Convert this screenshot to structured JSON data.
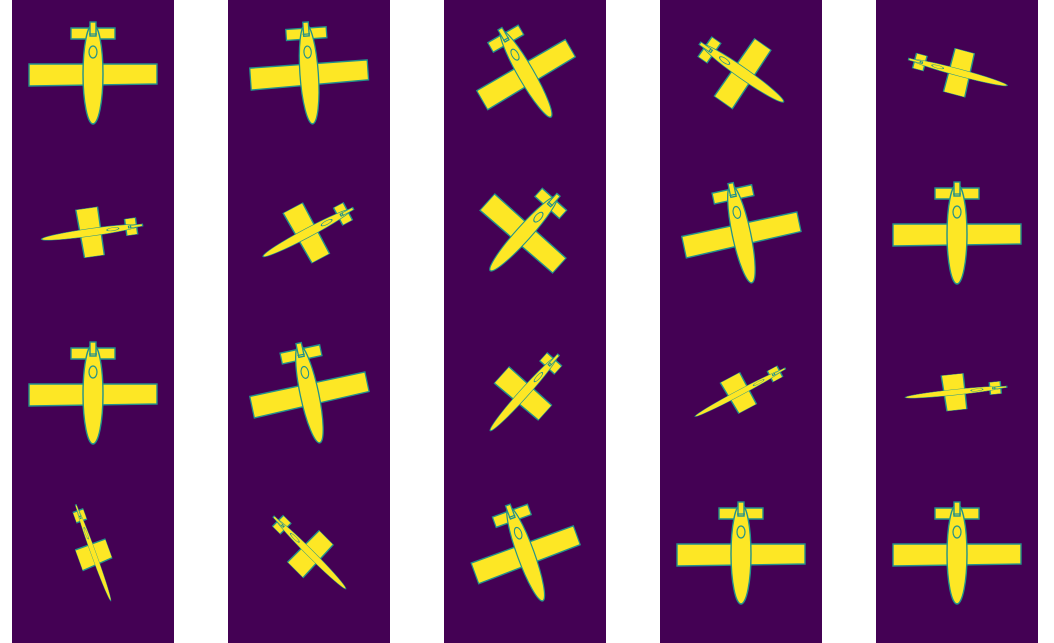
{
  "colors": {
    "background": "#440154",
    "plane": "#fde725",
    "outline": "#21918c",
    "page": "#ffffff"
  },
  "panels": [
    {
      "frames": [
        {
          "rotation": 0,
          "tilt": 1.0
        },
        {
          "rotation": 82,
          "tilt": 0.38
        },
        {
          "rotation": 0,
          "tilt": 1.0
        },
        {
          "rotation": -20,
          "tilt": 0.25
        }
      ]
    },
    {
      "frames": [
        {
          "rotation": -4,
          "tilt": 0.92
        },
        {
          "rotation": 62,
          "tilt": 0.45
        },
        {
          "rotation": -12,
          "tilt": 0.92
        },
        {
          "rotation": -45,
          "tilt": 0.35
        }
      ]
    },
    {
      "frames": [
        {
          "rotation": -30,
          "tilt": 0.8
        },
        {
          "rotation": 42,
          "tilt": 0.75
        },
        {
          "rotation": 42,
          "tilt": 0.45
        },
        {
          "rotation": -20,
          "tilt": 0.85
        }
      ]
    },
    {
      "frames": [
        {
          "rotation": -55,
          "tilt": 0.55
        },
        {
          "rotation": -12,
          "tilt": 0.92
        },
        {
          "rotation": 62,
          "tilt": 0.28
        },
        {
          "rotation": 0,
          "tilt": 1.0
        }
      ]
    },
    {
      "frames": [
        {
          "rotation": -75,
          "tilt": 0.35
        },
        {
          "rotation": 0,
          "tilt": 1.0
        },
        {
          "rotation": 84,
          "tilt": 0.28
        },
        {
          "rotation": 0,
          "tilt": 1.0
        }
      ]
    }
  ]
}
